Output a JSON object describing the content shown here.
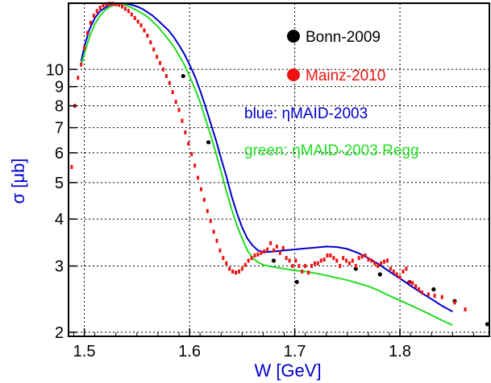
{
  "chart_data": {
    "type": "scatter",
    "xlabel": "W [GeV]",
    "ylabel": "σ [μb]",
    "xlim": [
      1.485,
      1.885
    ],
    "ylim": [
      1.95,
      15.0
    ],
    "y_scale": "log",
    "grid": true,
    "x_ticks": [
      1.5,
      1.6,
      1.7,
      1.8
    ],
    "x_tick_labels": [
      "1.5",
      "1.6",
      "1.7",
      "1.8"
    ],
    "y_ticks": [
      2,
      3,
      4,
      5,
      6,
      7,
      8,
      9,
      10
    ],
    "y_tick_labels": [
      "2",
      "3",
      "4",
      "5",
      "6",
      "7",
      "8",
      "9",
      "10"
    ],
    "legend_labels": {
      "bonn": "Bonn-2009",
      "mainz": "Mainz-2010",
      "blue": "blue: ηMAID-2003",
      "green": "green: ηMAID-2003 Regg"
    },
    "legend_placement": "top-right",
    "colors": {
      "bonn": "#000000",
      "mainz": "#ee1111",
      "blue": "#0000cc",
      "green": "#22dd22",
      "axis_title": "#0000cc"
    },
    "series": [
      {
        "name": "Bonn-2009",
        "kind": "points",
        "x": [
          1.594,
          1.618,
          1.68,
          1.702,
          1.758,
          1.781,
          1.809,
          1.832,
          1.852,
          1.883
        ],
        "y": [
          9.6,
          6.4,
          3.1,
          2.72,
          2.95,
          2.85,
          2.72,
          2.6,
          2.42,
          2.1
        ]
      },
      {
        "name": "Mainz-2010",
        "kind": "points",
        "x": [
          1.488,
          1.491,
          1.494,
          1.497,
          1.5,
          1.503,
          1.506,
          1.509,
          1.512,
          1.515,
          1.518,
          1.521,
          1.524,
          1.527,
          1.53,
          1.533,
          1.536,
          1.539,
          1.542,
          1.545,
          1.548,
          1.551,
          1.554,
          1.557,
          1.56,
          1.563,
          1.566,
          1.569,
          1.572,
          1.575,
          1.578,
          1.581,
          1.584,
          1.587,
          1.59,
          1.593,
          1.596,
          1.599,
          1.602,
          1.605,
          1.608,
          1.611,
          1.614,
          1.617,
          1.62,
          1.623,
          1.626,
          1.629,
          1.632,
          1.635,
          1.638,
          1.641,
          1.644,
          1.647,
          1.65,
          1.653,
          1.656,
          1.659,
          1.662,
          1.665,
          1.668,
          1.671,
          1.674,
          1.677,
          1.68,
          1.683,
          1.686,
          1.689,
          1.692,
          1.695,
          1.698,
          1.701,
          1.704,
          1.707,
          1.71,
          1.713,
          1.716,
          1.719,
          1.722,
          1.725,
          1.728,
          1.731,
          1.734,
          1.737,
          1.74,
          1.743,
          1.746,
          1.749,
          1.752,
          1.755,
          1.758,
          1.761,
          1.764,
          1.767,
          1.77,
          1.773,
          1.776,
          1.779,
          1.782,
          1.785,
          1.788,
          1.791,
          1.794,
          1.797,
          1.8,
          1.803,
          1.806,
          1.809,
          1.812,
          1.815,
          1.818,
          1.821,
          1.827,
          1.833,
          1.84,
          1.852,
          1.862
        ],
        "y": [
          5.5,
          8.0,
          9.5,
          10.3,
          11.4,
          12.5,
          13.3,
          13.9,
          14.3,
          14.6,
          14.8,
          14.9,
          14.95,
          14.95,
          14.9,
          14.85,
          14.7,
          14.5,
          14.3,
          14.0,
          13.7,
          13.4,
          13.1,
          12.7,
          12.3,
          11.8,
          11.3,
          10.8,
          10.4,
          10.0,
          9.6,
          9.2,
          8.7,
          8.2,
          7.8,
          7.3,
          6.8,
          6.35,
          5.95,
          5.55,
          5.15,
          4.8,
          4.5,
          4.2,
          3.95,
          3.7,
          3.5,
          3.3,
          3.15,
          3.05,
          2.95,
          2.9,
          2.88,
          2.9,
          2.95,
          3.02,
          3.1,
          3.15,
          3.2,
          3.22,
          3.25,
          3.28,
          3.32,
          3.45,
          3.3,
          3.38,
          3.25,
          3.35,
          3.15,
          3.1,
          3.0,
          3.1,
          3.0,
          2.9,
          3.0,
          2.88,
          3.0,
          3.05,
          3.05,
          3.1,
          3.12,
          3.2,
          3.2,
          3.15,
          3.1,
          3.0,
          3.15,
          3.1,
          3.05,
          3.1,
          3.0,
          3.15,
          3.18,
          3.2,
          3.12,
          3.1,
          3.05,
          3.0,
          3.05,
          3.08,
          3.1,
          2.95,
          2.9,
          2.85,
          2.8,
          2.9,
          2.95,
          2.72,
          2.7,
          2.65,
          2.6,
          2.55,
          2.52,
          2.5,
          2.48,
          2.4,
          2.3
        ]
      },
      {
        "name": "ηMAID-2003",
        "kind": "line",
        "x": [
          1.497,
          1.5,
          1.505,
          1.51,
          1.515,
          1.52,
          1.525,
          1.53,
          1.535,
          1.54,
          1.545,
          1.55,
          1.555,
          1.56,
          1.565,
          1.57,
          1.575,
          1.58,
          1.585,
          1.59,
          1.595,
          1.6,
          1.605,
          1.61,
          1.615,
          1.62,
          1.625,
          1.63,
          1.635,
          1.64,
          1.645,
          1.65,
          1.655,
          1.66,
          1.665,
          1.67,
          1.675,
          1.68,
          1.69,
          1.7,
          1.71,
          1.72,
          1.73,
          1.74,
          1.75,
          1.76,
          1.77,
          1.78,
          1.79,
          1.8,
          1.81,
          1.82,
          1.83,
          1.84,
          1.85
        ],
        "y": [
          10.5,
          11.5,
          12.8,
          13.7,
          14.3,
          14.6,
          14.9,
          15.0,
          15.0,
          14.95,
          14.85,
          14.7,
          14.5,
          14.2,
          13.9,
          13.5,
          13.1,
          12.7,
          12.2,
          11.6,
          11.0,
          10.3,
          9.6,
          8.8,
          8.0,
          7.2,
          6.5,
          5.8,
          5.2,
          4.6,
          4.15,
          3.8,
          3.55,
          3.4,
          3.3,
          3.27,
          3.27,
          3.28,
          3.3,
          3.32,
          3.34,
          3.36,
          3.38,
          3.37,
          3.33,
          3.25,
          3.15,
          3.03,
          2.9,
          2.78,
          2.66,
          2.55,
          2.45,
          2.35,
          2.27
        ]
      },
      {
        "name": "ηMAID-2003 Regg",
        "kind": "line",
        "x": [
          1.497,
          1.5,
          1.505,
          1.51,
          1.515,
          1.52,
          1.525,
          1.53,
          1.535,
          1.54,
          1.545,
          1.55,
          1.555,
          1.56,
          1.565,
          1.57,
          1.575,
          1.58,
          1.585,
          1.59,
          1.595,
          1.6,
          1.605,
          1.61,
          1.615,
          1.62,
          1.625,
          1.63,
          1.635,
          1.64,
          1.645,
          1.65,
          1.655,
          1.66,
          1.665,
          1.67,
          1.675,
          1.68,
          1.69,
          1.7,
          1.71,
          1.72,
          1.73,
          1.74,
          1.75,
          1.76,
          1.77,
          1.78,
          1.79,
          1.8,
          1.81,
          1.82,
          1.83,
          1.84,
          1.85
        ],
        "y": [
          10.3,
          11.0,
          12.2,
          13.2,
          13.9,
          14.4,
          14.7,
          14.9,
          14.9,
          14.8,
          14.6,
          14.35,
          14.1,
          13.8,
          13.4,
          13.0,
          12.5,
          12.0,
          11.5,
          10.9,
          10.3,
          9.6,
          8.9,
          8.2,
          7.4,
          6.7,
          6.0,
          5.35,
          4.75,
          4.25,
          3.85,
          3.55,
          3.3,
          3.15,
          3.07,
          3.02,
          3.0,
          2.98,
          2.95,
          2.92,
          2.9,
          2.87,
          2.83,
          2.79,
          2.75,
          2.7,
          2.65,
          2.58,
          2.5,
          2.43,
          2.36,
          2.29,
          2.22,
          2.15,
          2.09
        ]
      }
    ]
  }
}
